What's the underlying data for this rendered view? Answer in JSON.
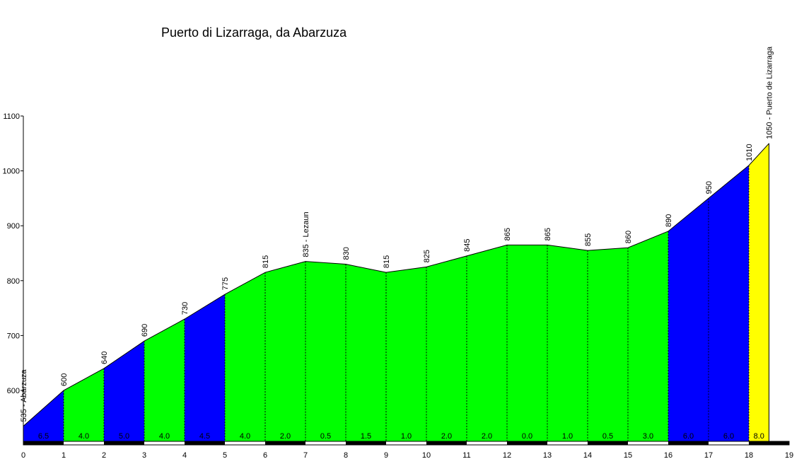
{
  "chart_data": {
    "type": "area",
    "title": "Puerto di Lizarraga, da Abarzuza",
    "xlim": [
      0,
      19
    ],
    "ylim": [
      510,
      1100
    ],
    "x_ticks": [
      "0",
      "1",
      "2",
      "3",
      "4",
      "5",
      "6",
      "7",
      "8",
      "9",
      "10",
      "11",
      "12",
      "13",
      "14",
      "15",
      "16",
      "17",
      "18",
      "19"
    ],
    "y_ticks": [
      "600",
      "700",
      "800",
      "900",
      "1000",
      "1100"
    ],
    "points": [
      {
        "x": 0,
        "y": 535,
        "label": "535 - Abarzuza"
      },
      {
        "x": 1,
        "y": 600,
        "label": "600"
      },
      {
        "x": 2,
        "y": 640,
        "label": "640"
      },
      {
        "x": 3,
        "y": 690,
        "label": "690"
      },
      {
        "x": 4,
        "y": 730,
        "label": "730"
      },
      {
        "x": 5,
        "y": 775,
        "label": "775"
      },
      {
        "x": 6,
        "y": 815,
        "label": "815"
      },
      {
        "x": 7,
        "y": 835,
        "label": "835 - Lezaun"
      },
      {
        "x": 8,
        "y": 830,
        "label": "830"
      },
      {
        "x": 9,
        "y": 815,
        "label": "815"
      },
      {
        "x": 10,
        "y": 825,
        "label": "825"
      },
      {
        "x": 11,
        "y": 845,
        "label": "845"
      },
      {
        "x": 12,
        "y": 865,
        "label": "865"
      },
      {
        "x": 13,
        "y": 865,
        "label": "865"
      },
      {
        "x": 14,
        "y": 855,
        "label": "855"
      },
      {
        "x": 15,
        "y": 860,
        "label": "860"
      },
      {
        "x": 16,
        "y": 890,
        "label": "890"
      },
      {
        "x": 17,
        "y": 950,
        "label": "950"
      },
      {
        "x": 18,
        "y": 1010,
        "label": "1010"
      },
      {
        "x": 18.5,
        "y": 1050,
        "label": "1050 - Puerto de Lizarraga"
      }
    ],
    "segments": [
      {
        "from": 0,
        "to": 1,
        "gradient": "6.5",
        "color": "#0000ff"
      },
      {
        "from": 1,
        "to": 2,
        "gradient": "4.0",
        "color": "#00ff00"
      },
      {
        "from": 2,
        "to": 3,
        "gradient": "5.0",
        "color": "#0000ff"
      },
      {
        "from": 3,
        "to": 4,
        "gradient": "4.0",
        "color": "#00ff00"
      },
      {
        "from": 4,
        "to": 5,
        "gradient": "4.5",
        "color": "#0000ff"
      },
      {
        "from": 5,
        "to": 6,
        "gradient": "4.0",
        "color": "#00ff00"
      },
      {
        "from": 6,
        "to": 7,
        "gradient": "2.0",
        "color": "#00ff00"
      },
      {
        "from": 7,
        "to": 8,
        "gradient": "0.5",
        "color": "#00ff00"
      },
      {
        "from": 8,
        "to": 9,
        "gradient": "1.5",
        "color": "#00ff00"
      },
      {
        "from": 9,
        "to": 10,
        "gradient": "1.0",
        "color": "#00ff00"
      },
      {
        "from": 10,
        "to": 11,
        "gradient": "2.0",
        "color": "#00ff00"
      },
      {
        "from": 11,
        "to": 12,
        "gradient": "2.0",
        "color": "#00ff00"
      },
      {
        "from": 12,
        "to": 13,
        "gradient": "0.0",
        "color": "#00ff00"
      },
      {
        "from": 13,
        "to": 14,
        "gradient": "1.0",
        "color": "#00ff00"
      },
      {
        "from": 14,
        "to": 15,
        "gradient": "0.5",
        "color": "#00ff00"
      },
      {
        "from": 15,
        "to": 16,
        "gradient": "3.0",
        "color": "#00ff00"
      },
      {
        "from": 16,
        "to": 17,
        "gradient": "6.0",
        "color": "#0000ff"
      },
      {
        "from": 17,
        "to": 18,
        "gradient": "6.0",
        "color": "#0000ff"
      },
      {
        "from": 18,
        "to": 18.5,
        "gradient": "8.0",
        "color": "#ffff00"
      }
    ]
  }
}
